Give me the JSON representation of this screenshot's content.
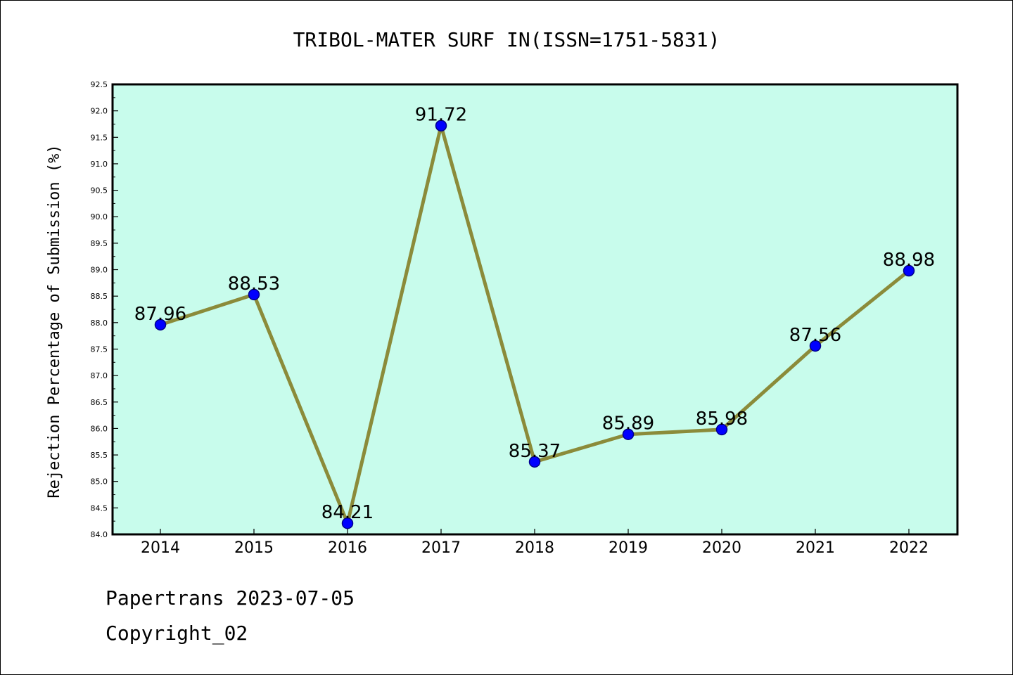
{
  "chart_data": {
    "type": "line",
    "title": "TRIBOL-MATER SURF IN(ISSN=1751-5831)",
    "xlabel": "",
    "ylabel": "Rejection Percentage of Submission (%)",
    "categories": [
      "2014",
      "2015",
      "2016",
      "2017",
      "2018",
      "2019",
      "2020",
      "2021",
      "2022"
    ],
    "series": [
      {
        "values": [
          87.96,
          88.53,
          84.21,
          91.72,
          85.37,
          85.89,
          85.98,
          87.56,
          88.98
        ]
      }
    ],
    "data_labels": [
      "87.96",
      "88.53",
      "84.21",
      "91.72",
      "85.37",
      "85.89",
      "85.98",
      "87.56",
      "88.98"
    ],
    "ylim": [
      84.0,
      92.5
    ],
    "yticks": [
      "84.0",
      "84.5",
      "85.0",
      "85.5",
      "86.0",
      "86.5",
      "87.0",
      "87.5",
      "88.0",
      "88.5",
      "89.0",
      "89.5",
      "90.0",
      "90.5",
      "91.0",
      "91.5",
      "92.0",
      "92.5"
    ],
    "grid": false,
    "legend": "none",
    "colors": {
      "plot_background": "#c8fcec",
      "line": "#8b8b3a",
      "marker": "#0000ff",
      "marker_edge": "#00008b",
      "axes": "#000000"
    }
  },
  "footer": {
    "line1": "Papertrans 2023-07-05",
    "line2": "Copyright_02"
  }
}
